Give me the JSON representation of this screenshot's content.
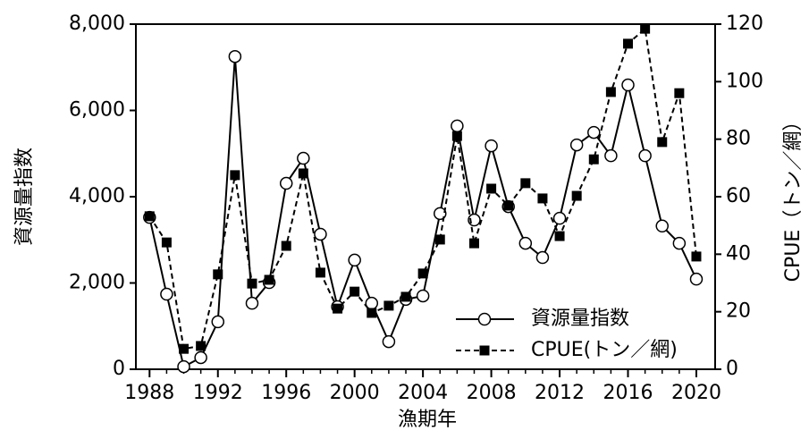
{
  "chart_data": {
    "type": "line",
    "x_label": "漁期年",
    "y_label": "資源量指数",
    "y2_label": "CPUE（トン／網）",
    "x": [
      1988,
      1989,
      1990,
      1991,
      1992,
      1993,
      1994,
      1995,
      1996,
      1997,
      1998,
      1999,
      2000,
      2001,
      2002,
      2003,
      2004,
      2005,
      2006,
      2007,
      2008,
      2009,
      2010,
      2011,
      2012,
      2013,
      2014,
      2015,
      2016,
      2017,
      2018,
      2019,
      2020
    ],
    "series": [
      {
        "name": "資源量指数",
        "color": "#000000",
        "marker": "circle",
        "dash": false,
        "values": [
          3520,
          1740,
          60,
          270,
          1100,
          7250,
          1530,
          2010,
          4310,
          4890,
          3130,
          1450,
          2530,
          1530,
          640,
          1620,
          1700,
          3610,
          5640,
          3460,
          5180,
          3770,
          2920,
          2590,
          3500,
          5200,
          5490,
          4950,
          6590,
          4950,
          3320,
          2920,
          2090
        ]
      },
      {
        "name": "CPUE(トン／網)",
        "color": "#000000",
        "marker": "square",
        "dash": true,
        "axis": "y2",
        "values": [
          53.2,
          44.1,
          7.1,
          8.1,
          33.0,
          67.5,
          29.8,
          31.1,
          42.9,
          68.1,
          33.6,
          21.1,
          27.0,
          19.6,
          22.1,
          25.2,
          33.3,
          45.1,
          81.1,
          43.8,
          62.8,
          56.9,
          64.7,
          59.4,
          46.3,
          60.3,
          73.0,
          96.4,
          113.2,
          118.4,
          79.0,
          96.0,
          39.2
        ]
      }
    ],
    "xlim": [
      1987.2,
      2021.1
    ],
    "xticks": [
      1988,
      1992,
      1996,
      2000,
      2004,
      2008,
      2012,
      2016,
      2020
    ],
    "ylim": [
      0,
      8000
    ],
    "yticks": [
      0,
      {
        "value": 2000,
        "label": "2,000"
      },
      {
        "value": 4000,
        "label": "4,000"
      },
      {
        "value": 6000,
        "label": "6,000"
      },
      {
        "value": 8000,
        "label": "8,000"
      }
    ],
    "y2lim": [
      0,
      120
    ],
    "y2ticks": [
      0,
      20,
      40,
      60,
      80,
      100,
      120
    ],
    "legend": "lower right"
  }
}
